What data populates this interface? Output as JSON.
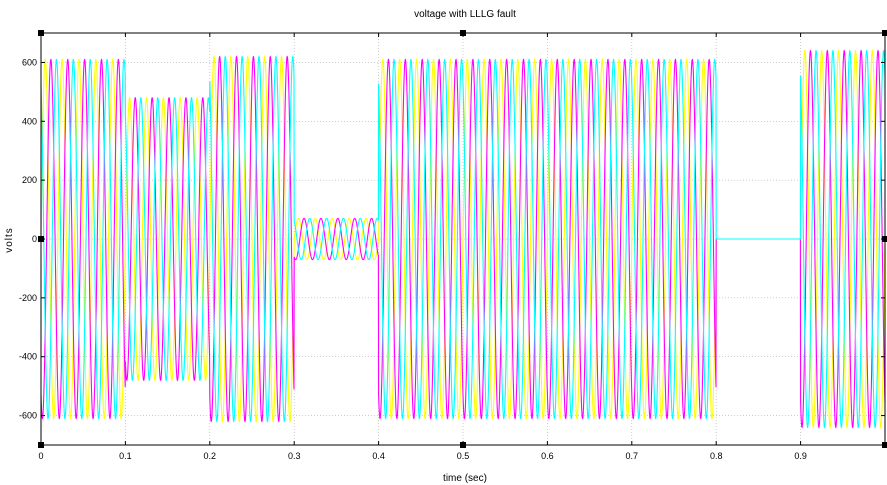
{
  "chart_data": {
    "type": "line",
    "title": "voltage with LLLG fault",
    "xlabel": "time (sec)",
    "ylabel": "volts",
    "xlim": [
      0,
      1.0
    ],
    "ylim": [
      -700,
      700
    ],
    "xticks": [
      0,
      0.1,
      0.2,
      0.3,
      0.4,
      0.5,
      0.6,
      0.7,
      0.8,
      0.9
    ],
    "xtick_labels": [
      "0",
      "0.1",
      "0.2",
      "0.3",
      "0.4",
      "0.5",
      "0.6",
      "0.7",
      "0.8",
      "0.9"
    ],
    "yticks": [
      600,
      400,
      200,
      0,
      -200,
      -400,
      -600
    ],
    "ytick_labels": [
      "600",
      "400",
      "200",
      "0",
      "-200",
      "-400",
      "-600"
    ],
    "grid": true,
    "frequency_hz": 50,
    "series": [
      {
        "color": "#ffff00",
        "phase_deg": 0
      },
      {
        "color": "#ff00ff",
        "phase_deg": -120
      },
      {
        "color": "#00ffff",
        "phase_deg": 120
      }
    ],
    "segments": [
      {
        "t_start": 0.0,
        "t_end": 0.1,
        "amplitude": 610
      },
      {
        "t_start": 0.1,
        "t_end": 0.2,
        "amplitude": 480
      },
      {
        "t_start": 0.2,
        "t_end": 0.3,
        "amplitude": 620
      },
      {
        "t_start": 0.3,
        "t_end": 0.4,
        "amplitude": 70
      },
      {
        "t_start": 0.4,
        "t_end": 0.8,
        "amplitude": 610
      },
      {
        "t_start": 0.8,
        "t_end": 0.9,
        "amplitude": 0
      },
      {
        "t_start": 0.9,
        "t_end": 1.0,
        "amplitude": 640
      }
    ]
  }
}
